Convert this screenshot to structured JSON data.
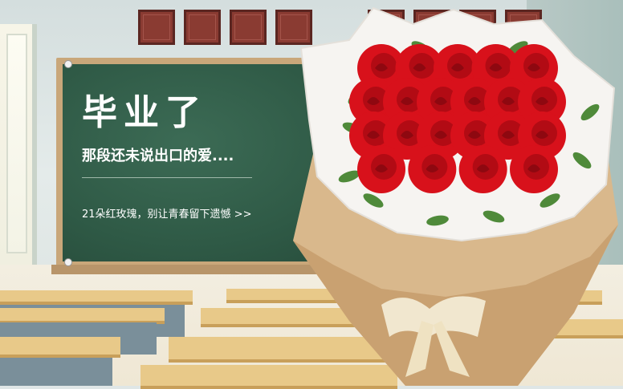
{
  "banner": {
    "title": "毕业了",
    "subtitle": "那段还未说出口的爱....",
    "tagline": "21朵红玫瑰，别让青春留下遗憾 >>"
  },
  "scene": {
    "roses_count": 21,
    "rose_color": "#d8111b",
    "board_color": "#2f5a46"
  }
}
